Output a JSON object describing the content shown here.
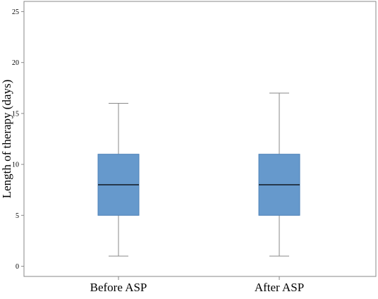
{
  "chart_data": {
    "type": "box",
    "title": "",
    "xlabel": "",
    "ylabel": "Length of therapy (days)",
    "ylim": [
      -1,
      26
    ],
    "yticks": [
      0,
      5,
      10,
      15,
      20,
      25
    ],
    "grid": false,
    "categories": [
      "Before ASP",
      "After ASP"
    ],
    "boxes": [
      {
        "category": "Before ASP",
        "min": 1,
        "q1": 5,
        "median": 8,
        "q3": 11,
        "max": 16
      },
      {
        "category": "After ASP",
        "min": 1,
        "q1": 5,
        "median": 8,
        "q3": 11,
        "max": 17
      }
    ],
    "colors": {
      "box_fill": "#6699CC",
      "box_edge": "#4D82B8",
      "median": "#000000",
      "whisker": "#8A8A8A",
      "frame": "#8A8A8A"
    }
  }
}
